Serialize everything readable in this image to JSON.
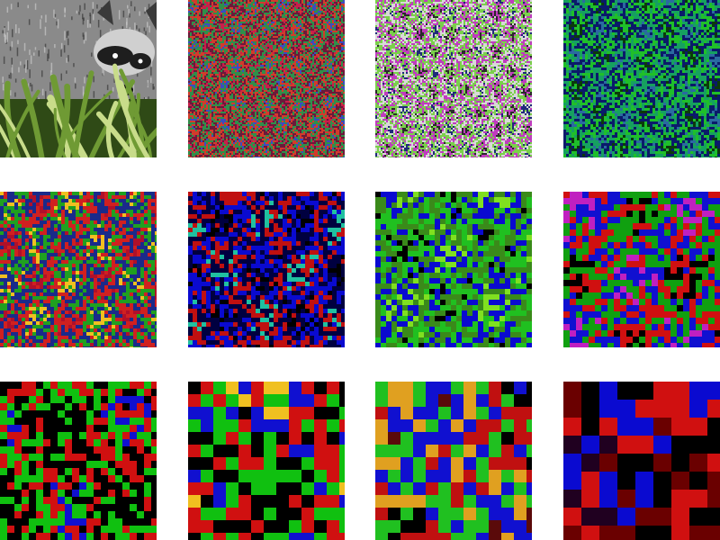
{
  "figure": {
    "description_kind": "grid of 12 image panels (raccoon photo and feature-map visualizations)",
    "panels": [
      {
        "id": "p1",
        "kind": "photo",
        "palette": [
          "#6a6a6a",
          "#bdbdbd",
          "#2b2b2b",
          "#4f7a2a",
          "#a7c46a"
        ],
        "cell": 0
      },
      {
        "id": "p2",
        "kind": "feature-map",
        "palette": [
          "#c81e4a",
          "#6b1a3a",
          "#2f8f4a",
          "#d23b2b",
          "#3b4cc0"
        ],
        "cell": 2
      },
      {
        "id": "p3",
        "kind": "feature-map",
        "palette": [
          "#1f2a7a",
          "#d8d8d8",
          "#7ad04a",
          "#c03bbf",
          "#2a2a2a"
        ],
        "cell": 2
      },
      {
        "id": "p4",
        "kind": "feature-map",
        "palette": [
          "#0b3a0b",
          "#1fbf2a",
          "#0a1a6a",
          "#16a060",
          "#2a6aa0"
        ],
        "cell": 3
      },
      {
        "id": "p5",
        "kind": "feature-map",
        "palette": [
          "#b0102a",
          "#d02020",
          "#1a2a8a",
          "#20a020",
          "#f0c020"
        ],
        "cell": 4
      },
      {
        "id": "p6",
        "kind": "feature-map",
        "palette": [
          "#000000",
          "#0a0ad0",
          "#000040",
          "#c01010",
          "#20c0a0"
        ],
        "cell": 5
      },
      {
        "id": "p7",
        "kind": "feature-map",
        "palette": [
          "#000000",
          "#20c020",
          "#3a8a1a",
          "#0a0ad0",
          "#80e020"
        ],
        "cell": 6
      },
      {
        "id": "p8",
        "kind": "feature-map",
        "palette": [
          "#000000",
          "#d01010",
          "#10a010",
          "#1010d0",
          "#c020c0"
        ],
        "cell": 7
      },
      {
        "id": "p9",
        "kind": "feature-map",
        "palette": [
          "#000000",
          "#000000",
          "#10c010",
          "#d01010",
          "#1010d0"
        ],
        "cell": 8
      },
      {
        "id": "p10",
        "kind": "feature-map",
        "palette": [
          "#000000",
          "#000000",
          "#10c010",
          "#d01010",
          "#1010d0",
          "#f0c020"
        ],
        "cell": 14
      },
      {
        "id": "p11",
        "kind": "feature-map",
        "palette": [
          "#000000",
          "#c01010",
          "#20c020",
          "#1010d0",
          "#e0a020",
          "#5a0a0a"
        ],
        "cell": 14
      },
      {
        "id": "p12",
        "kind": "feature-map",
        "palette": [
          "#000000",
          "#000000",
          "#6a0000",
          "#d01010",
          "#0a0ad0",
          "#200020"
        ],
        "cell": 20
      }
    ]
  }
}
